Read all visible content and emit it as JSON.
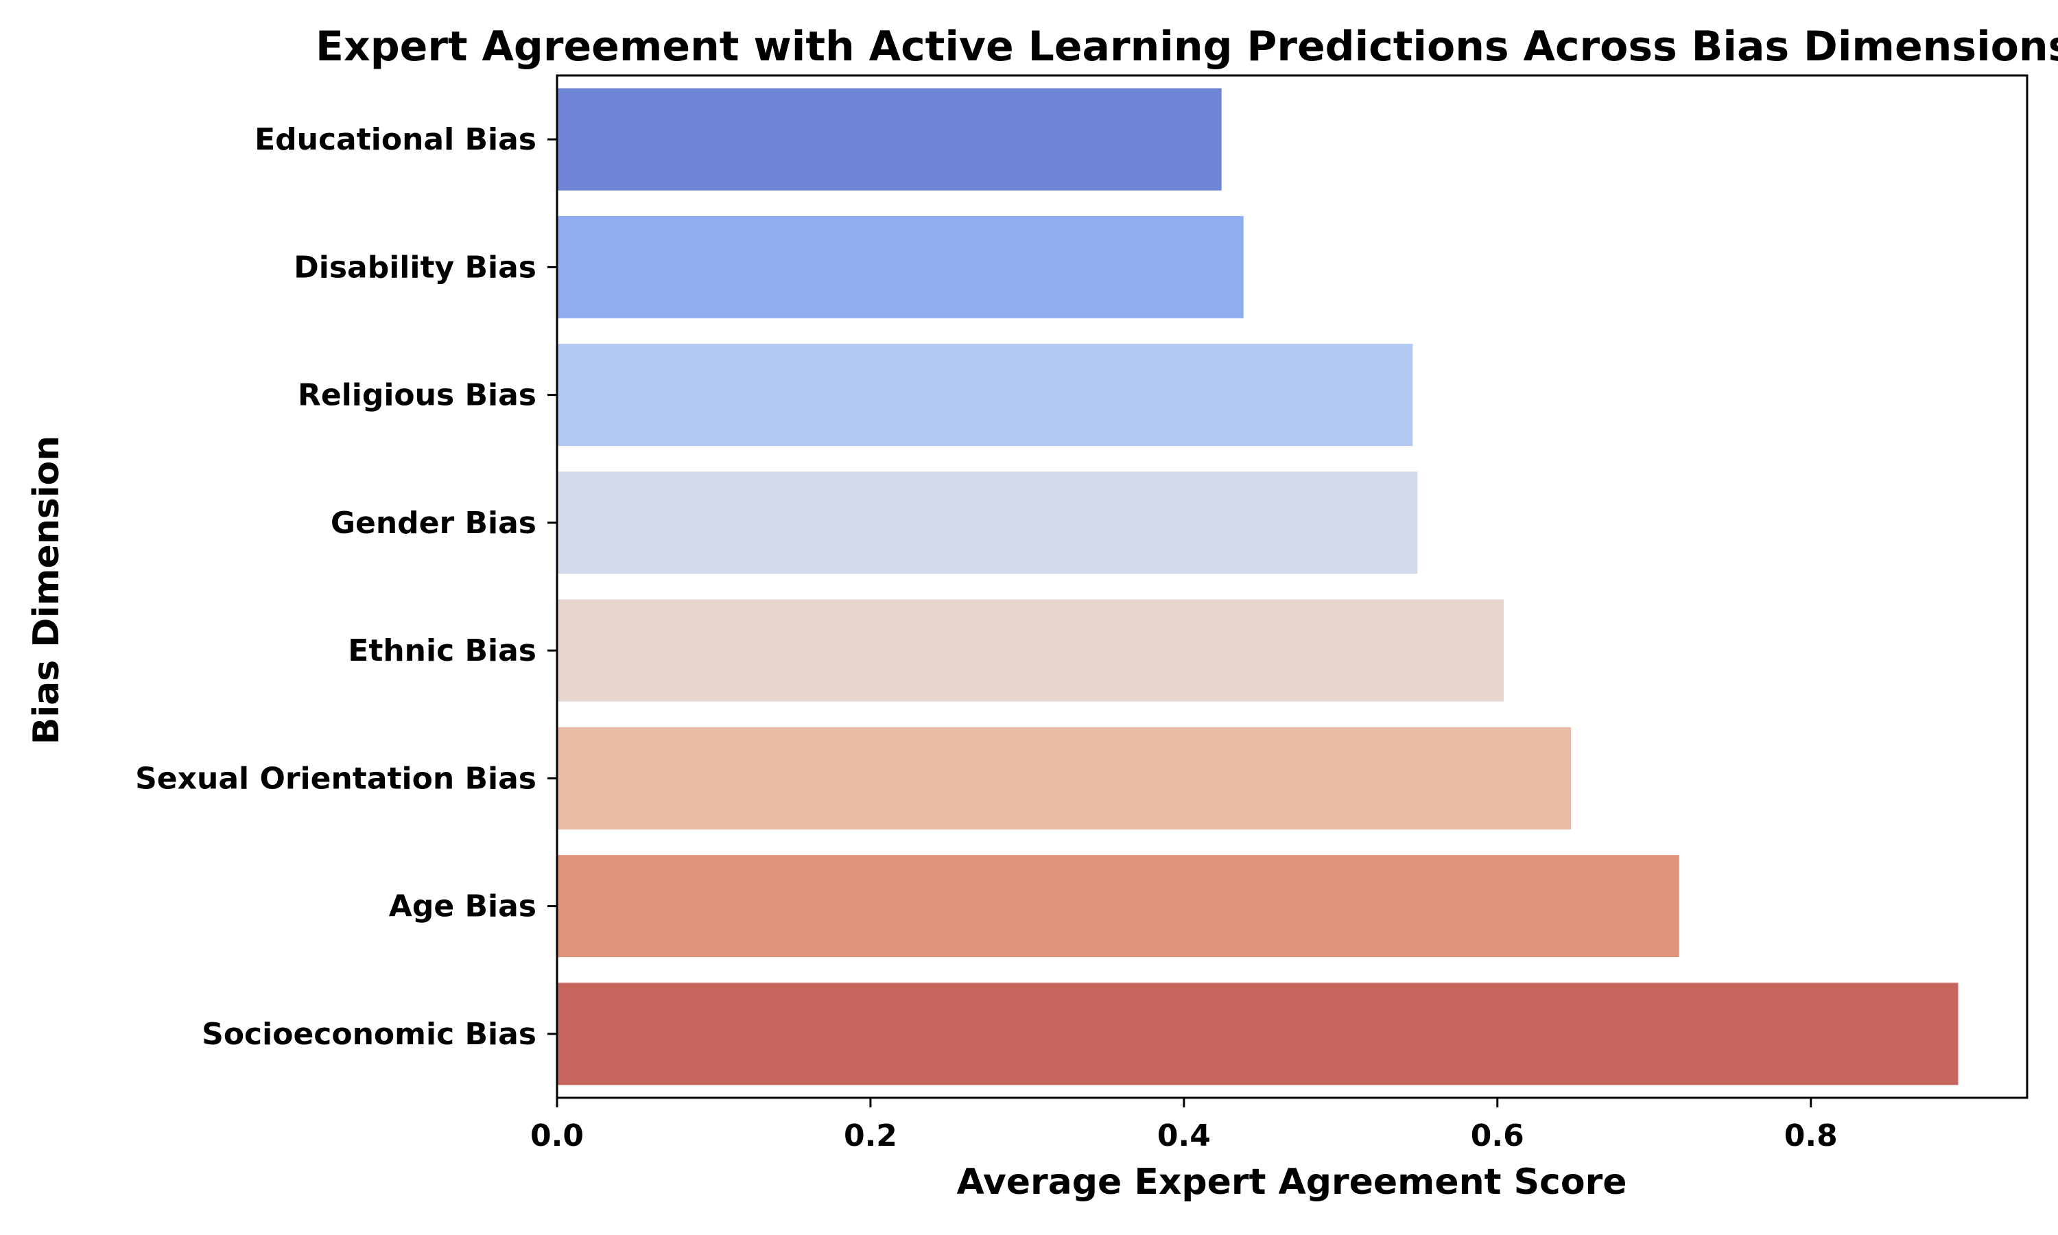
{
  "chart_data": {
    "type": "bar",
    "orientation": "horizontal",
    "title": "Expert Agreement with Active Learning Predictions Across Bias Dimensions",
    "xlabel": "Average Expert Agreement Score",
    "ylabel": "Bias Dimension",
    "xlim": [
      0,
      0.938
    ],
    "xticks": [
      0.0,
      0.2,
      0.4,
      0.6,
      0.8
    ],
    "xtick_labels": [
      "0.0",
      "0.2",
      "0.4",
      "0.6",
      "0.8"
    ],
    "grid": false,
    "categories": [
      "Educational Bias",
      "Disability Bias",
      "Religious Bias",
      "Gender Bias",
      "Ethnic Bias",
      "Sexual Orientation Bias",
      "Age Bias",
      "Socioeconomic Bias"
    ],
    "values": [
      0.424,
      0.438,
      0.546,
      0.549,
      0.604,
      0.647,
      0.716,
      0.894
    ],
    "colors": [
      "#6f86d6",
      "#91adee",
      "#b4c9f2",
      "#d3dceb",
      "#e6d6ce",
      "#ecbba6",
      "#e0947e",
      "#c7665c"
    ]
  }
}
